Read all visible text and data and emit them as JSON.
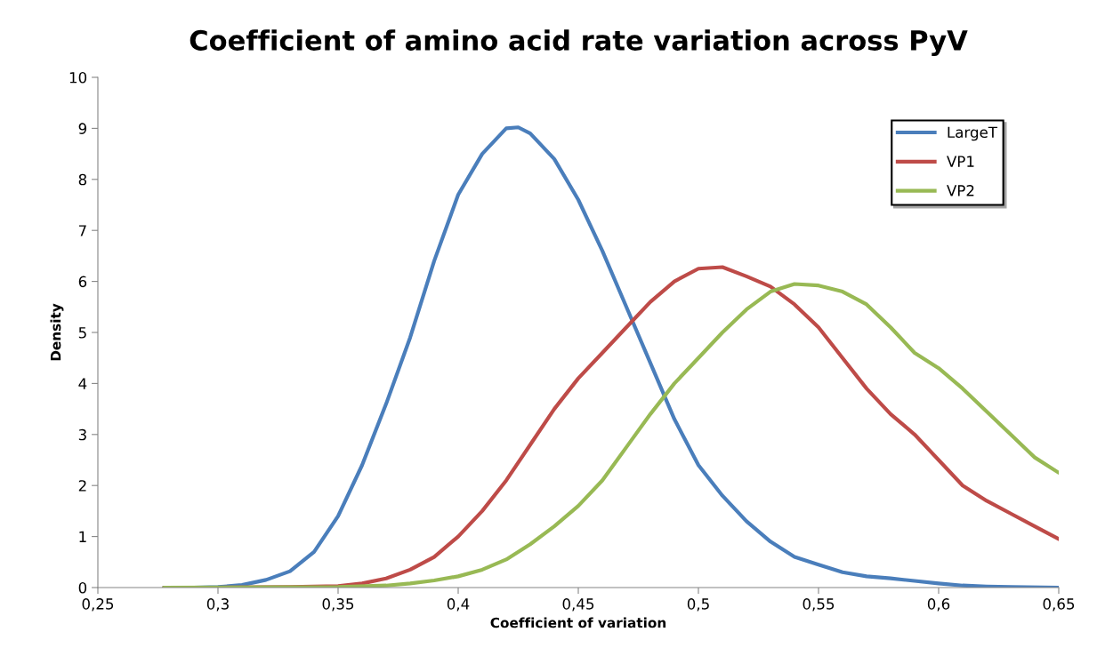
{
  "chart_data": {
    "type": "line",
    "title": "Coefficient of amino acid rate variation across PyV",
    "xlabel": "Coefficient of variation",
    "ylabel": "Density",
    "xlim": [
      0.25,
      0.65
    ],
    "ylim": [
      0,
      10
    ],
    "xticks": [
      {
        "value": 0.25,
        "label": "0,25"
      },
      {
        "value": 0.3,
        "label": "0,3"
      },
      {
        "value": 0.35,
        "label": "0,35"
      },
      {
        "value": 0.4,
        "label": "0,4"
      },
      {
        "value": 0.45,
        "label": "0,45"
      },
      {
        "value": 0.5,
        "label": "0,5"
      },
      {
        "value": 0.55,
        "label": "0,55"
      },
      {
        "value": 0.6,
        "label": "0,6"
      },
      {
        "value": 0.65,
        "label": "0,65"
      }
    ],
    "yticks": [
      0,
      1,
      2,
      3,
      4,
      5,
      6,
      7,
      8,
      9,
      10
    ],
    "grid": false,
    "legend": "top right",
    "marker": "none",
    "line_style": "solid",
    "series": [
      {
        "name": "LargeT",
        "color": "#4a7ebb",
        "x": [
          0.2775,
          0.29,
          0.3,
          0.31,
          0.32,
          0.33,
          0.34,
          0.35,
          0.36,
          0.37,
          0.38,
          0.39,
          0.4,
          0.41,
          0.42,
          0.425,
          0.43,
          0.44,
          0.45,
          0.46,
          0.47,
          0.48,
          0.49,
          0.5,
          0.51,
          0.52,
          0.53,
          0.54,
          0.55,
          0.56,
          0.57,
          0.58,
          0.59,
          0.6,
          0.61,
          0.62,
          0.63,
          0.65
        ],
        "values": [
          0,
          0,
          0.01,
          0.05,
          0.15,
          0.32,
          0.7,
          1.4,
          2.4,
          3.6,
          4.9,
          6.4,
          7.7,
          8.5,
          9.0,
          9.02,
          8.9,
          8.4,
          7.6,
          6.6,
          5.5,
          4.4,
          3.3,
          2.4,
          1.8,
          1.3,
          0.9,
          0.6,
          0.45,
          0.3,
          0.22,
          0.18,
          0.13,
          0.08,
          0.04,
          0.02,
          0.01,
          0
        ]
      },
      {
        "name": "VP1",
        "color": "#be4b48",
        "x": [
          0.2775,
          0.3,
          0.33,
          0.35,
          0.36,
          0.37,
          0.38,
          0.39,
          0.4,
          0.41,
          0.42,
          0.43,
          0.44,
          0.45,
          0.46,
          0.47,
          0.48,
          0.49,
          0.5,
          0.51,
          0.52,
          0.53,
          0.54,
          0.55,
          0.56,
          0.57,
          0.58,
          0.59,
          0.6,
          0.61,
          0.62,
          0.63,
          0.64,
          0.65
        ],
        "values": [
          0,
          0,
          0.01,
          0.03,
          0.08,
          0.18,
          0.35,
          0.6,
          1.0,
          1.5,
          2.1,
          2.8,
          3.5,
          4.1,
          4.6,
          5.1,
          5.6,
          6.0,
          6.25,
          6.28,
          6.1,
          5.9,
          5.55,
          5.1,
          4.5,
          3.9,
          3.4,
          3.0,
          2.5,
          2.0,
          1.7,
          1.45,
          1.2,
          0.95
        ]
      },
      {
        "name": "VP2",
        "color": "#98b954",
        "x": [
          0.2775,
          0.35,
          0.37,
          0.38,
          0.39,
          0.4,
          0.41,
          0.42,
          0.43,
          0.44,
          0.45,
          0.46,
          0.47,
          0.48,
          0.49,
          0.5,
          0.51,
          0.52,
          0.53,
          0.54,
          0.55,
          0.56,
          0.57,
          0.58,
          0.59,
          0.6,
          0.61,
          0.62,
          0.63,
          0.64,
          0.65
        ],
        "values": [
          0,
          0.01,
          0.04,
          0.08,
          0.14,
          0.22,
          0.35,
          0.55,
          0.85,
          1.2,
          1.6,
          2.1,
          2.75,
          3.4,
          4.0,
          4.5,
          5.0,
          5.45,
          5.8,
          5.95,
          5.92,
          5.8,
          5.55,
          5.1,
          4.6,
          4.3,
          3.9,
          3.45,
          3.0,
          2.55,
          2.25
        ]
      }
    ]
  }
}
